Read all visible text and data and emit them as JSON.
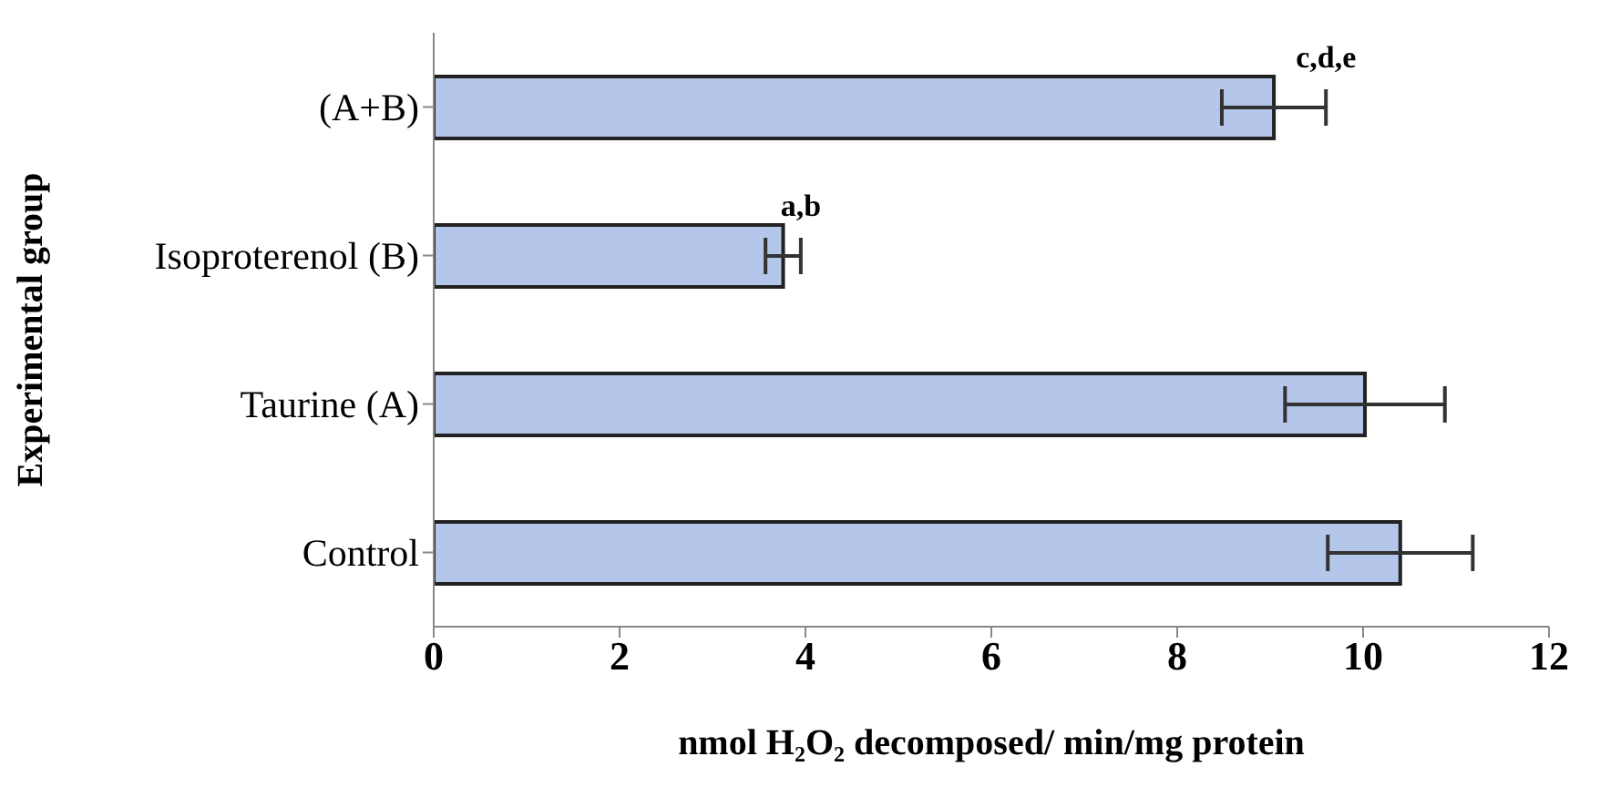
{
  "chart_data": {
    "type": "bar",
    "orientation": "horizontal",
    "categories": [
      "(A+B)",
      "Isoproterenol (B)",
      "Taurine (A)",
      "Control"
    ],
    "values": [
      9.04,
      3.76,
      10.02,
      10.4
    ],
    "errors": [
      0.56,
      0.19,
      0.86,
      0.78
    ],
    "color": "#b4c6ea",
    "xlim": [
      0,
      12
    ],
    "xticks": [
      0,
      2,
      4,
      6,
      8,
      10,
      12
    ],
    "xlabel": "nmol H₂O₂ decomposed/ min/mg protein",
    "ylabel": "Experimental group",
    "grid": false,
    "legend": false,
    "annotations": [
      {
        "text": "c,d,e",
        "x": 9.6,
        "y": "(A+B)"
      },
      {
        "text": "a,b",
        "x": 3.95,
        "y": "Isoproterenol (B)"
      }
    ]
  }
}
